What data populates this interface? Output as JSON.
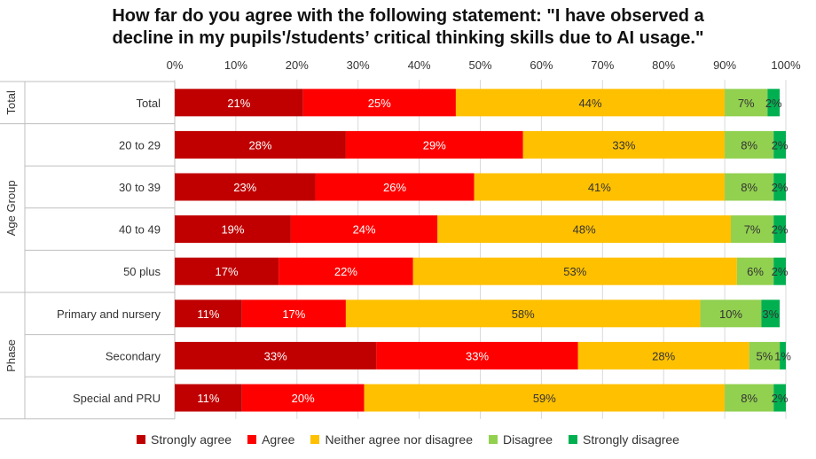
{
  "chart_data": {
    "type": "bar",
    "orientation": "horizontal",
    "stacked": true,
    "title_lines": [
      "How far do you agree with the following statement: \"I have observed a",
      "decline in my pupils'/students’ critical thinking skills due to AI usage.\""
    ],
    "xlim": [
      0,
      100
    ],
    "x_ticks": [
      "0%",
      "10%",
      "20%",
      "30%",
      "40%",
      "50%",
      "60%",
      "70%",
      "80%",
      "90%",
      "100%"
    ],
    "groups": [
      {
        "name": "Total",
        "categories": [
          "Total"
        ]
      },
      {
        "name": "Age Group",
        "categories": [
          "20 to 29",
          "30 to 39",
          "40 to 49",
          "50 plus"
        ]
      },
      {
        "name": "Phase",
        "categories": [
          "Primary and nursery",
          "Secondary",
          "Special and PRU"
        ]
      }
    ],
    "categories": [
      "Total",
      "20 to 29",
      "30 to 39",
      "40 to 49",
      "50 plus",
      "Primary and nursery",
      "Secondary",
      "Special and PRU"
    ],
    "series": [
      {
        "name": "Strongly agree",
        "color": "#c00000",
        "label_color": "#ffffff",
        "values": [
          21,
          28,
          23,
          19,
          17,
          11,
          33,
          11
        ]
      },
      {
        "name": "Agree",
        "color": "#ff0000",
        "label_color": "#ffffff",
        "values": [
          25,
          29,
          26,
          24,
          22,
          17,
          33,
          20
        ]
      },
      {
        "name": "Neither agree nor disagree",
        "color": "#ffc000",
        "label_color": "#333333",
        "values": [
          44,
          33,
          41,
          48,
          53,
          58,
          28,
          59
        ]
      },
      {
        "name": "Disagree",
        "color": "#92d050",
        "label_color": "#333333",
        "values": [
          7,
          8,
          8,
          7,
          6,
          10,
          5,
          8
        ]
      },
      {
        "name": "Strongly disagree",
        "color": "#00b050",
        "label_color": "#333333",
        "values": [
          2,
          2,
          2,
          2,
          2,
          3,
          1,
          2
        ]
      }
    ],
    "legend_position": "bottom",
    "grid": true
  }
}
